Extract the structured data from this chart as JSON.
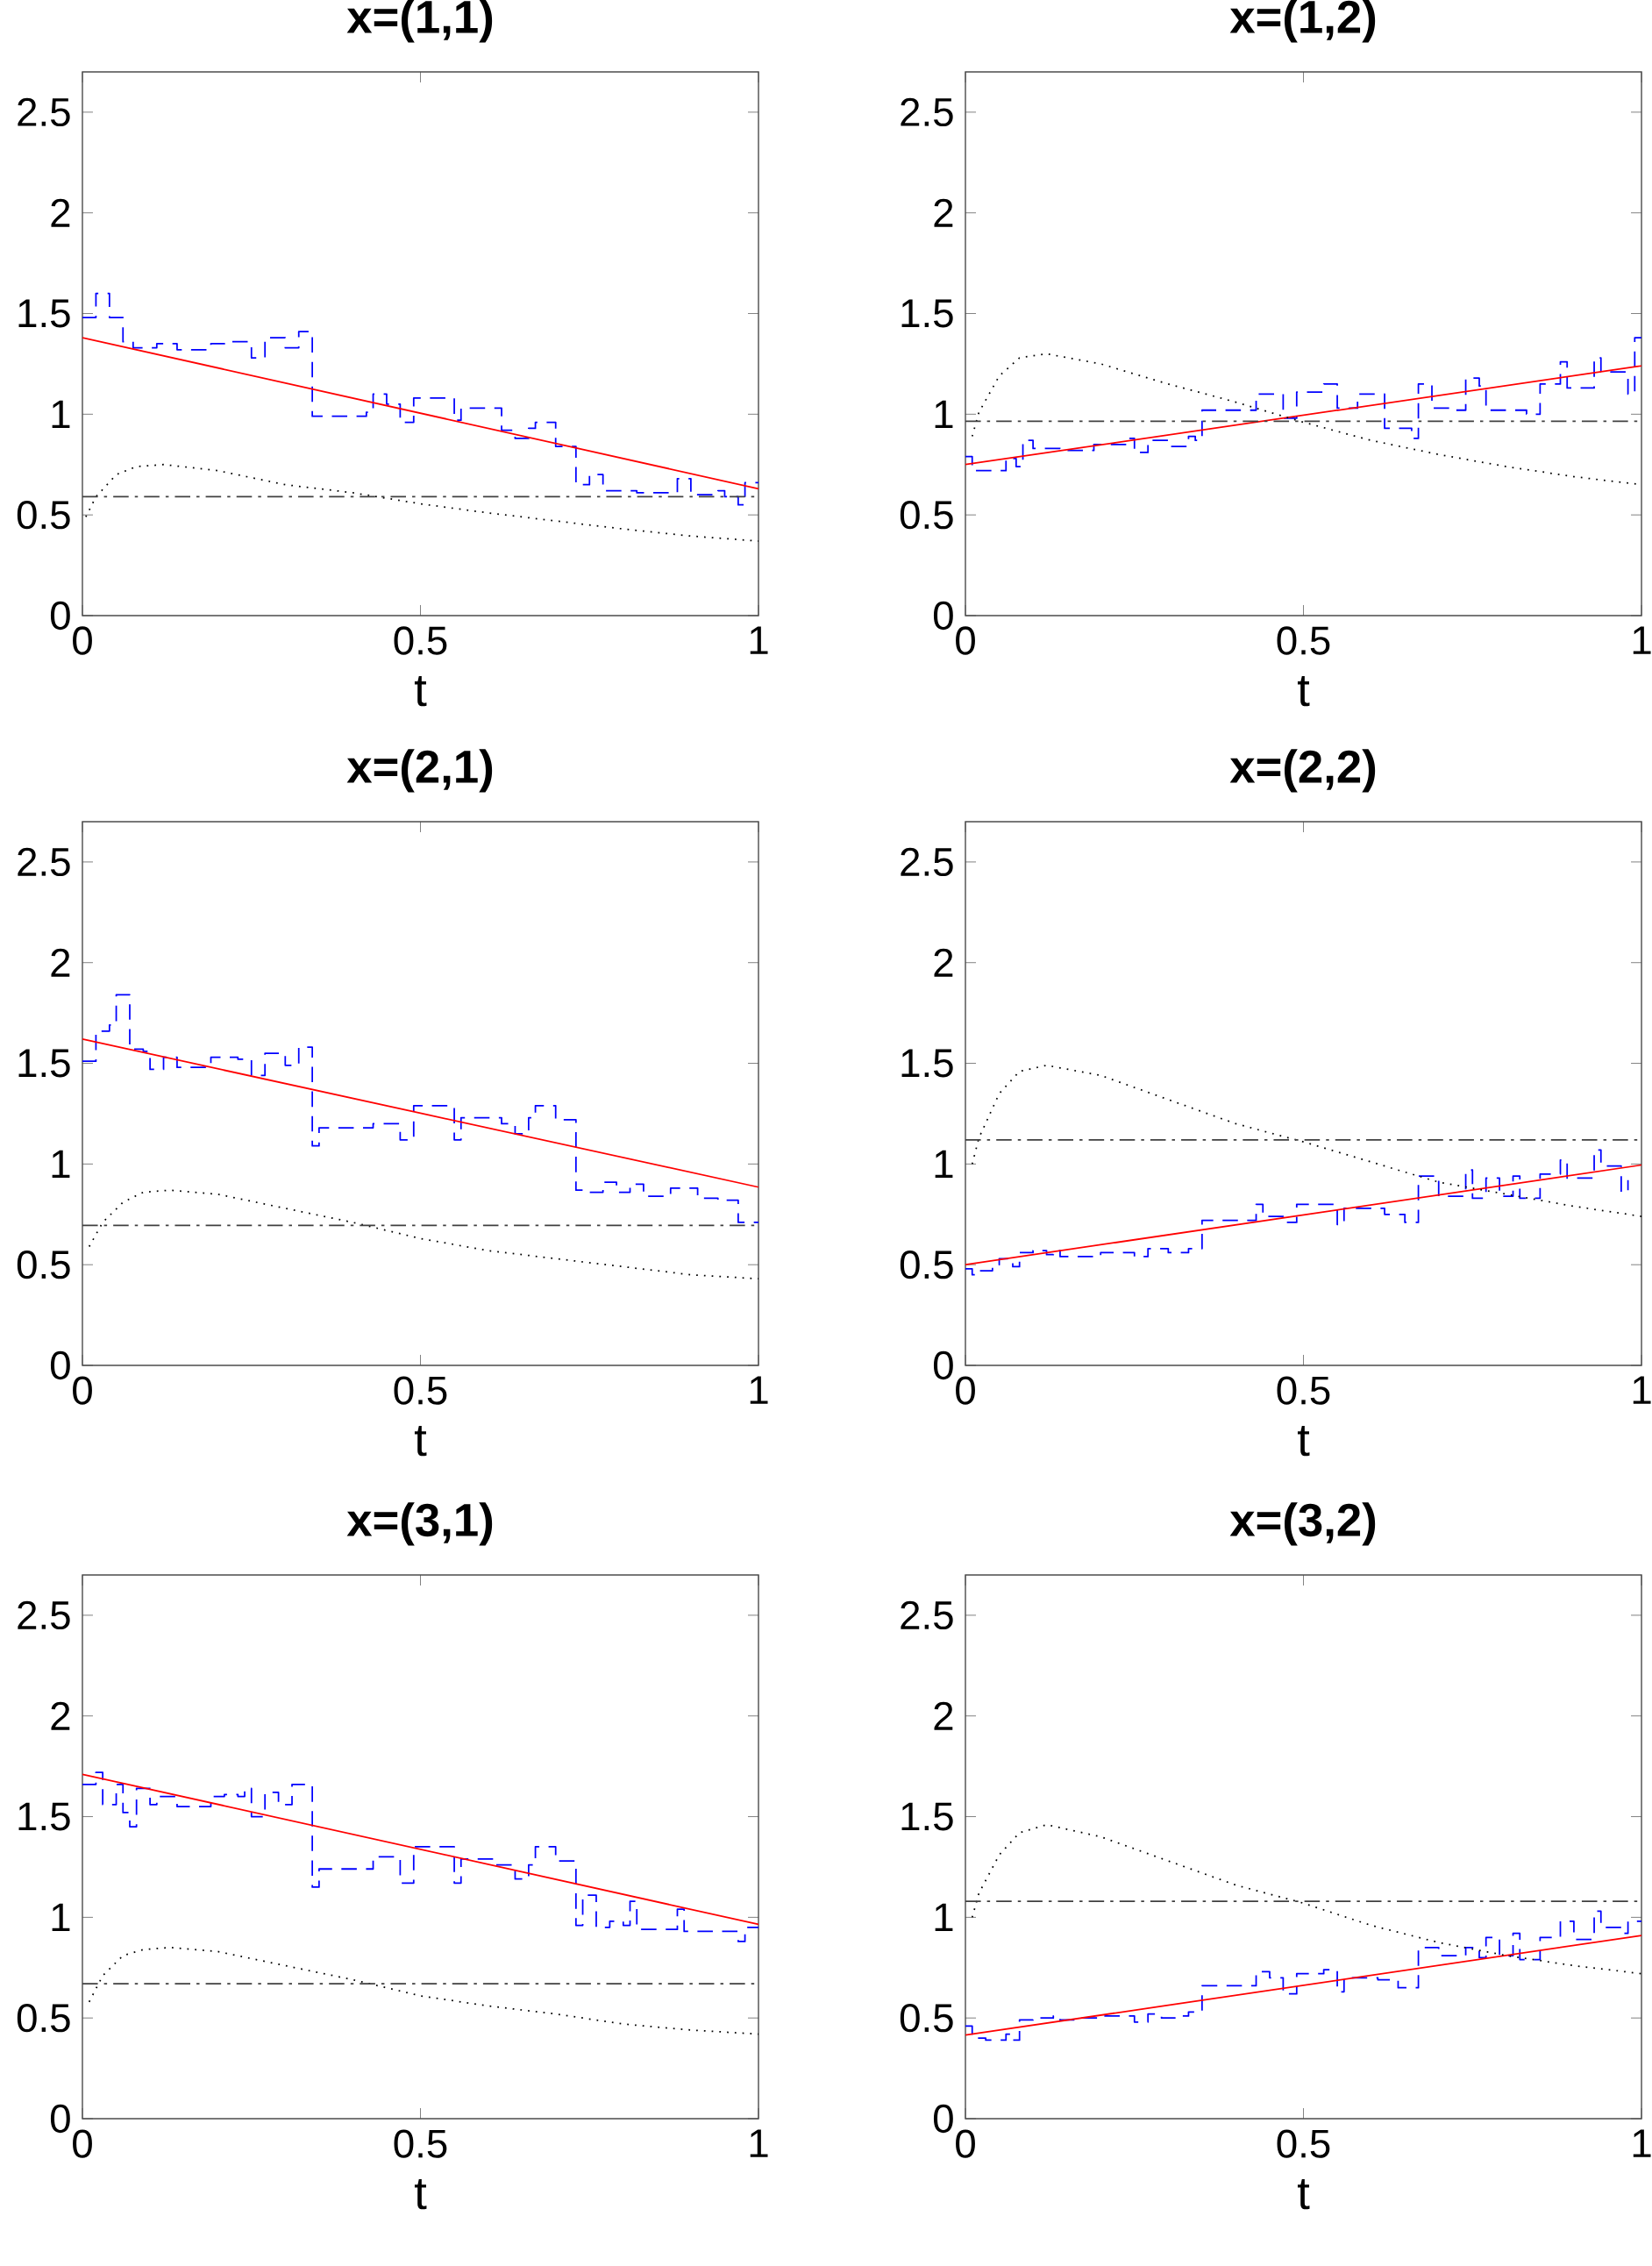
{
  "chart_data": [
    {
      "type": "line",
      "title": "x=(1,1)",
      "xlabel": "t",
      "xlim": [
        0,
        1
      ],
      "ylim": [
        0,
        2.7
      ],
      "xticks": [
        0,
        0.5,
        1
      ],
      "yticks": [
        0,
        0.5,
        1,
        1.5,
        2,
        2.5
      ],
      "series": [
        {
          "type": "step",
          "color": "#0000ff",
          "line_style": "dashed",
          "x": [
            0,
            0.02,
            0.04,
            0.06,
            0.075,
            0.11,
            0.14,
            0.19,
            0.21,
            0.25,
            0.27,
            0.3,
            0.32,
            0.34,
            0.42,
            0.43,
            0.45,
            0.47,
            0.49,
            0.55,
            0.56,
            0.62,
            0.64,
            0.66,
            0.67,
            0.7,
            0.73,
            0.75,
            0.77,
            0.82,
            0.85,
            0.88,
            0.9,
            0.94,
            0.95,
            0.97,
            0.98,
            1
          ],
          "values": [
            1.48,
            1.6,
            1.48,
            1.36,
            1.33,
            1.35,
            1.32,
            1.35,
            1.36,
            1.28,
            1.38,
            1.33,
            1.41,
            0.99,
            1.01,
            1.1,
            1.05,
            0.96,
            1.08,
            0.97,
            1.03,
            0.92,
            0.88,
            0.93,
            0.96,
            0.84,
            0.65,
            0.7,
            0.62,
            0.61,
            0.61,
            0.68,
            0.6,
            0.62,
            0.59,
            0.55,
            0.66,
            0.66
          ]
        },
        {
          "color": "#ff0000",
          "x": [
            0,
            1
          ],
          "values": [
            1.38,
            0.63
          ]
        },
        {
          "color": "#000000",
          "line_style": "dotted",
          "x": [
            0.005,
            0.02,
            0.05,
            0.08,
            0.12,
            0.2,
            0.3,
            0.4,
            0.5,
            0.6,
            0.7,
            0.8,
            0.9,
            1
          ],
          "values": [
            0.49,
            0.59,
            0.7,
            0.74,
            0.75,
            0.72,
            0.65,
            0.61,
            0.555,
            0.51,
            0.47,
            0.43,
            0.395,
            0.37
          ]
        }
      ],
      "ref_lines": [
        {
          "axis": "y",
          "value": 0.59,
          "color": "#404040",
          "line_style": "dashdot"
        }
      ]
    },
    {
      "type": "line",
      "title": "x=(1,2)",
      "xlabel": "t",
      "xlim": [
        0,
        1
      ],
      "ylim": [
        0,
        2.7
      ],
      "xticks": [
        0,
        0.5,
        1
      ],
      "yticks": [
        0,
        0.5,
        1,
        1.5,
        2,
        2.5
      ],
      "series": [
        {
          "type": "step",
          "color": "#0000ff",
          "line_style": "dashed",
          "x": [
            0,
            0.01,
            0.03,
            0.06,
            0.075,
            0.085,
            0.1,
            0.14,
            0.19,
            0.24,
            0.25,
            0.27,
            0.3,
            0.33,
            0.34,
            0.35,
            0.43,
            0.45,
            0.47,
            0.49,
            0.53,
            0.55,
            0.58,
            0.62,
            0.66,
            0.67,
            0.69,
            0.72,
            0.74,
            0.76,
            0.77,
            0.79,
            0.83,
            0.85,
            0.88,
            0.89,
            0.93,
            0.94,
            0.98,
            0.99,
            1
          ],
          "values": [
            0.79,
            0.72,
            0.72,
            0.78,
            0.74,
            0.87,
            0.83,
            0.82,
            0.85,
            0.88,
            0.81,
            0.87,
            0.84,
            0.89,
            0.87,
            1.02,
            1.1,
            1.1,
            0.98,
            1.11,
            1.15,
            1.03,
            1.1,
            0.93,
            0.88,
            1.15,
            1.03,
            1.02,
            1.18,
            1.14,
            1.02,
            1.02,
            1.0,
            1.15,
            1.26,
            1.13,
            1.28,
            1.21,
            1.1,
            1.38,
            1.38
          ]
        },
        {
          "color": "#ff0000",
          "x": [
            0,
            1
          ],
          "values": [
            0.75,
            1.24
          ]
        },
        {
          "color": "#000000",
          "line_style": "dotted",
          "x": [
            0.01,
            0.02,
            0.05,
            0.08,
            0.12,
            0.2,
            0.3,
            0.4,
            0.5,
            0.6,
            0.7,
            0.8,
            0.9,
            1
          ],
          "values": [
            0.89,
            1.01,
            1.19,
            1.28,
            1.3,
            1.25,
            1.15,
            1.06,
            0.96,
            0.87,
            0.8,
            0.74,
            0.69,
            0.65
          ]
        }
      ],
      "ref_lines": [
        {
          "axis": "y",
          "value": 0.965,
          "color": "#404040",
          "line_style": "dashdot"
        }
      ]
    },
    {
      "type": "line",
      "title": "x=(2,1)",
      "xlabel": "t",
      "xlim": [
        0,
        1
      ],
      "ylim": [
        0,
        2.7
      ],
      "xticks": [
        0,
        0.5,
        1
      ],
      "yticks": [
        0,
        0.5,
        1,
        1.5,
        2,
        2.5
      ],
      "series": [
        {
          "type": "step",
          "color": "#0000ff",
          "line_style": "dashed",
          "x": [
            0,
            0.02,
            0.04,
            0.05,
            0.07,
            0.09,
            0.1,
            0.12,
            0.14,
            0.19,
            0.23,
            0.25,
            0.27,
            0.3,
            0.32,
            0.34,
            0.35,
            0.43,
            0.47,
            0.49,
            0.55,
            0.56,
            0.61,
            0.62,
            0.64,
            0.66,
            0.67,
            0.7,
            0.73,
            0.75,
            0.77,
            0.79,
            0.81,
            0.83,
            0.87,
            0.91,
            0.94,
            0.97,
            1
          ],
          "values": [
            1.51,
            1.66,
            1.69,
            1.84,
            1.57,
            1.56,
            1.47,
            1.53,
            1.48,
            1.53,
            1.52,
            1.44,
            1.55,
            1.49,
            1.58,
            1.09,
            1.18,
            1.2,
            1.12,
            1.29,
            1.12,
            1.23,
            1.23,
            1.2,
            1.15,
            1.23,
            1.29,
            1.22,
            0.87,
            0.86,
            0.91,
            0.86,
            0.9,
            0.84,
            0.88,
            0.83,
            0.82,
            0.71,
            0.71
          ]
        },
        {
          "color": "#ff0000",
          "x": [
            0,
            1
          ],
          "values": [
            1.62,
            0.885
          ]
        },
        {
          "color": "#000000",
          "line_style": "dotted",
          "x": [
            0.01,
            0.03,
            0.06,
            0.09,
            0.13,
            0.2,
            0.3,
            0.4,
            0.5,
            0.6,
            0.7,
            0.8,
            0.9,
            1
          ],
          "values": [
            0.59,
            0.71,
            0.81,
            0.86,
            0.87,
            0.85,
            0.78,
            0.71,
            0.63,
            0.57,
            0.53,
            0.49,
            0.45,
            0.43
          ]
        }
      ],
      "ref_lines": [
        {
          "axis": "y",
          "value": 0.695,
          "color": "#404040",
          "line_style": "dashdot"
        }
      ]
    },
    {
      "type": "line",
      "title": "x=(2,2)",
      "xlabel": "t",
      "xlim": [
        0,
        1
      ],
      "ylim": [
        0,
        2.7
      ],
      "xticks": [
        0,
        0.5,
        1
      ],
      "yticks": [
        0,
        0.5,
        1,
        1.5,
        2,
        2.5
      ],
      "series": [
        {
          "type": "step",
          "color": "#0000ff",
          "line_style": "dashed",
          "x": [
            0,
            0.01,
            0.02,
            0.04,
            0.05,
            0.07,
            0.08,
            0.1,
            0.12,
            0.13,
            0.14,
            0.2,
            0.25,
            0.27,
            0.3,
            0.33,
            0.35,
            0.43,
            0.44,
            0.47,
            0.49,
            0.55,
            0.56,
            0.62,
            0.65,
            0.67,
            0.7,
            0.74,
            0.75,
            0.77,
            0.79,
            0.81,
            0.82,
            0.85,
            0.88,
            0.89,
            0.93,
            0.94,
            0.97,
            0.98
          ],
          "values": [
            0.48,
            0.45,
            0.47,
            0.5,
            0.53,
            0.49,
            0.56,
            0.57,
            0.55,
            0.57,
            0.54,
            0.56,
            0.54,
            0.58,
            0.56,
            0.58,
            0.72,
            0.8,
            0.74,
            0.71,
            0.8,
            0.7,
            0.78,
            0.75,
            0.71,
            0.94,
            0.84,
            0.97,
            0.83,
            0.93,
            0.84,
            0.94,
            0.83,
            0.95,
            1.02,
            0.93,
            1.07,
            0.99,
            0.86,
            0.92
          ]
        },
        {
          "color": "#ff0000",
          "x": [
            0,
            1
          ],
          "values": [
            0.5,
            0.995
          ]
        },
        {
          "color": "#000000",
          "line_style": "dotted",
          "x": [
            0.01,
            0.02,
            0.05,
            0.08,
            0.12,
            0.2,
            0.3,
            0.4,
            0.5,
            0.6,
            0.7,
            0.8,
            0.9,
            1
          ],
          "values": [
            1.0,
            1.13,
            1.35,
            1.46,
            1.49,
            1.44,
            1.32,
            1.2,
            1.11,
            1.01,
            0.91,
            0.85,
            0.79,
            0.74
          ]
        }
      ],
      "ref_lines": [
        {
          "axis": "y",
          "value": 1.12,
          "color": "#404040",
          "line_style": "dashdot"
        }
      ]
    },
    {
      "type": "line",
      "title": "x=(3,1)",
      "xlabel": "t",
      "xlim": [
        0,
        1
      ],
      "ylim": [
        0,
        2.7
      ],
      "xticks": [
        0,
        0.5,
        1
      ],
      "yticks": [
        0,
        0.5,
        1,
        1.5,
        2,
        2.5
      ],
      "series": [
        {
          "type": "step",
          "color": "#0000ff",
          "line_style": "dashed",
          "x": [
            0,
            0.02,
            0.03,
            0.05,
            0.06,
            0.07,
            0.08,
            0.1,
            0.11,
            0.14,
            0.19,
            0.21,
            0.23,
            0.24,
            0.25,
            0.27,
            0.29,
            0.31,
            0.34,
            0.35,
            0.43,
            0.47,
            0.49,
            0.55,
            0.56,
            0.61,
            0.64,
            0.66,
            0.67,
            0.7,
            0.73,
            0.74,
            0.76,
            0.78,
            0.8,
            0.81,
            0.82,
            0.85,
            0.88,
            0.89,
            0.94,
            0.97,
            0.98,
            1
          ],
          "values": [
            1.66,
            1.72,
            1.56,
            1.66,
            1.52,
            1.45,
            1.64,
            1.56,
            1.6,
            1.55,
            1.6,
            1.61,
            1.6,
            1.64,
            1.5,
            1.62,
            1.56,
            1.66,
            1.15,
            1.24,
            1.3,
            1.17,
            1.35,
            1.17,
            1.29,
            1.26,
            1.19,
            1.26,
            1.35,
            1.28,
            0.96,
            1.11,
            0.95,
            0.98,
            0.96,
            1.08,
            0.94,
            0.94,
            1.04,
            0.93,
            0.93,
            0.88,
            0.95,
            0.95
          ]
        },
        {
          "color": "#ff0000",
          "x": [
            0,
            1
          ],
          "values": [
            1.71,
            0.965
          ]
        },
        {
          "color": "#000000",
          "line_style": "dotted",
          "x": [
            0.01,
            0.03,
            0.06,
            0.09,
            0.13,
            0.2,
            0.3,
            0.4,
            0.5,
            0.6,
            0.7,
            0.8,
            0.9,
            1
          ],
          "values": [
            0.58,
            0.71,
            0.81,
            0.84,
            0.85,
            0.83,
            0.76,
            0.69,
            0.61,
            0.56,
            0.52,
            0.47,
            0.44,
            0.42
          ]
        }
      ],
      "ref_lines": [
        {
          "axis": "y",
          "value": 0.67,
          "color": "#404040",
          "line_style": "dashdot"
        }
      ]
    },
    {
      "type": "line",
      "title": "x=(3,2)",
      "xlabel": "t",
      "xlim": [
        0,
        1
      ],
      "ylim": [
        0,
        2.7
      ],
      "xticks": [
        0,
        0.5,
        1
      ],
      "yticks": [
        0,
        0.5,
        1,
        1.5,
        2,
        2.5
      ],
      "series": [
        {
          "type": "step",
          "color": "#0000ff",
          "line_style": "dashed",
          "x": [
            0,
            0.01,
            0.03,
            0.06,
            0.07,
            0.08,
            0.1,
            0.13,
            0.14,
            0.17,
            0.2,
            0.21,
            0.25,
            0.27,
            0.29,
            0.32,
            0.33,
            0.35,
            0.43,
            0.45,
            0.47,
            0.49,
            0.53,
            0.55,
            0.56,
            0.61,
            0.64,
            0.67,
            0.7,
            0.74,
            0.76,
            0.77,
            0.79,
            0.81,
            0.82,
            0.85,
            0.88,
            0.9,
            0.93,
            0.94,
            0.97,
            0.98,
            1
          ],
          "values": [
            0.46,
            0.4,
            0.39,
            0.42,
            0.39,
            0.49,
            0.5,
            0.51,
            0.49,
            0.5,
            0.51,
            0.51,
            0.48,
            0.52,
            0.5,
            0.51,
            0.53,
            0.66,
            0.73,
            0.7,
            0.62,
            0.72,
            0.74,
            0.63,
            0.7,
            0.69,
            0.65,
            0.85,
            0.81,
            0.85,
            0.8,
            0.9,
            0.81,
            0.92,
            0.79,
            0.9,
            0.98,
            0.89,
            1.03,
            0.95,
            0.92,
            0.98,
            0.98
          ]
        },
        {
          "color": "#ff0000",
          "x": [
            0,
            1
          ],
          "values": [
            0.415,
            0.91
          ]
        },
        {
          "color": "#000000",
          "line_style": "dotted",
          "x": [
            0.01,
            0.02,
            0.05,
            0.08,
            0.12,
            0.2,
            0.3,
            0.4,
            0.5,
            0.6,
            0.7,
            0.8,
            0.9,
            1
          ],
          "values": [
            1.0,
            1.12,
            1.31,
            1.42,
            1.46,
            1.4,
            1.28,
            1.16,
            1.07,
            0.96,
            0.875,
            0.81,
            0.76,
            0.72
          ]
        }
      ],
      "ref_lines": [
        {
          "axis": "y",
          "value": 1.08,
          "color": "#404040",
          "line_style": "dashdot"
        }
      ]
    }
  ]
}
